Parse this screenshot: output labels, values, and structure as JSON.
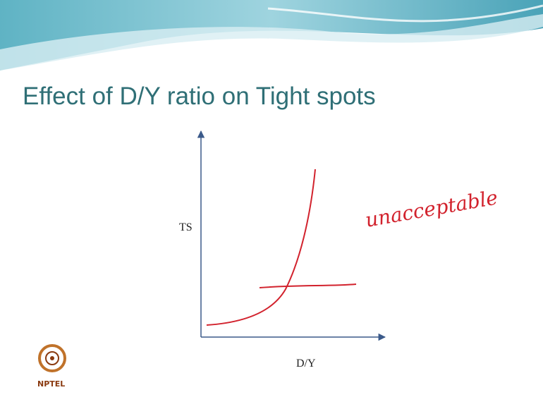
{
  "slide": {
    "title": "Effect of D/Y ratio on Tight spots",
    "diagram": {
      "y_axis_label": "TS",
      "x_axis_label": "D/Y",
      "annotation": "unacceptable"
    },
    "logo": "NPTEL"
  }
}
